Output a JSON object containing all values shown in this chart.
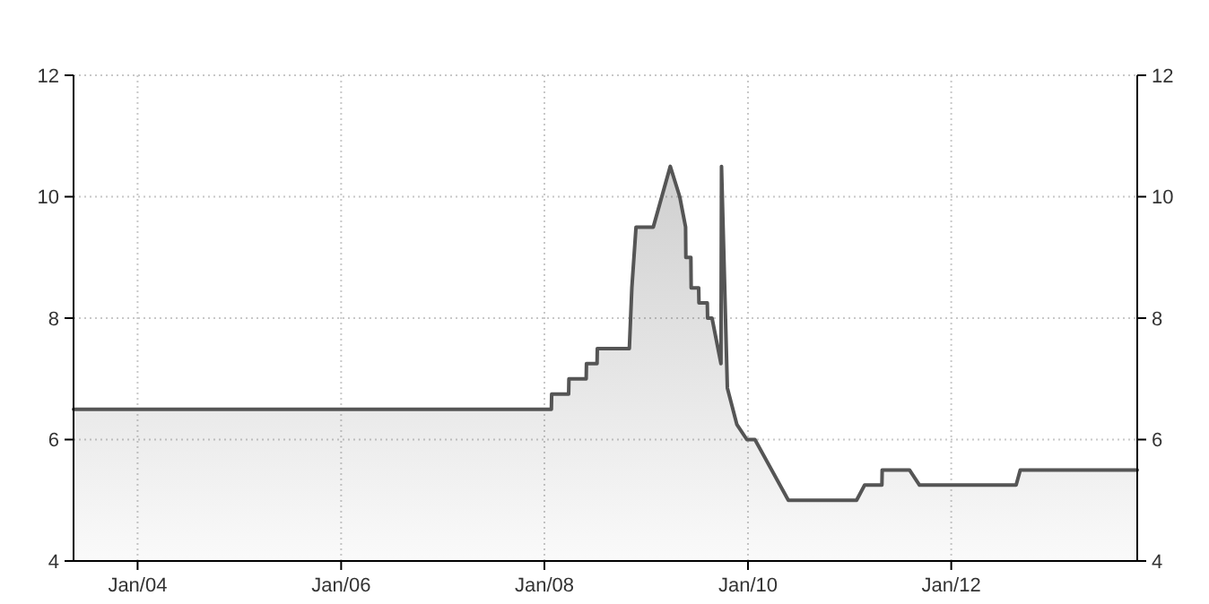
{
  "chart_data": {
    "type": "area",
    "x": [
      "2003-05-16",
      "2008-01-26",
      "2008-01-27",
      "2008-03-28",
      "2008-03-29",
      "2008-05-30",
      "2008-05-31",
      "2008-07-08",
      "2008-07-09",
      "2008-11-01",
      "2008-11-10",
      "2008-11-25",
      "2009-01-26",
      "2009-03-28",
      "2009-05-01",
      "2009-05-22",
      "2009-05-23",
      "2009-06-10",
      "2009-06-11",
      "2009-07-08",
      "2009-07-09",
      "2009-08-08",
      "2009-08-09",
      "2009-08-25",
      "2009-09-26",
      "2009-09-28",
      "2009-10-19",
      "2009-11-22",
      "2009-12-28",
      "2010-01-26",
      "2010-05-26",
      "2011-01-26",
      "2011-02-24",
      "2011-04-27",
      "2011-04-28",
      "2011-08-04",
      "2011-09-09",
      "2012-08-21",
      "2012-09-05",
      "2013-10-30"
    ],
    "series": [
      {
        "color": "#555555",
        "values": [
          6.5,
          6.5,
          6.75,
          6.75,
          7.0,
          7.0,
          7.25,
          7.25,
          7.5,
          7.5,
          8.5,
          9.5,
          9.5,
          10.5,
          10.0,
          9.5,
          9.0,
          9.0,
          8.5,
          8.5,
          8.25,
          8.25,
          8.0,
          8.0,
          7.25,
          10.5,
          6.85,
          6.25,
          6.0,
          6.0,
          5.0,
          5.0,
          5.25,
          5.25,
          5.5,
          5.5,
          5.25,
          5.25,
          5.5,
          5.5
        ]
      }
    ],
    "xlim": [
      "2003-05-16",
      "2013-10-30"
    ],
    "xticks": [
      {
        "value": "2004-01-01",
        "label": "Jan/04"
      },
      {
        "value": "2006-01-01",
        "label": "Jan/06"
      },
      {
        "value": "2008-01-01",
        "label": "Jan/08"
      },
      {
        "value": "2010-01-01",
        "label": "Jan/10"
      },
      {
        "value": "2012-01-01",
        "label": "Jan/12"
      }
    ],
    "ylim": [
      4,
      12
    ],
    "yticks": [
      4,
      6,
      8,
      10,
      12
    ],
    "y2lim": [
      4,
      12
    ],
    "y2ticks": [
      4,
      6,
      8,
      10,
      12
    ],
    "grid": true,
    "line_style": "solid",
    "marker": "none"
  }
}
